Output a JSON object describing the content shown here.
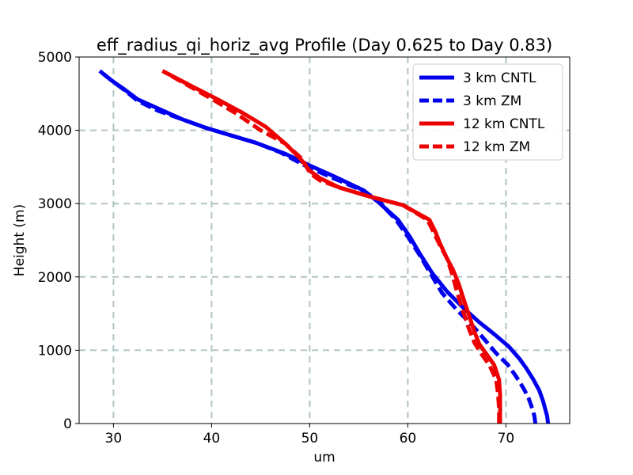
{
  "chart_data": {
    "type": "line",
    "title": "eff_radius_qi_horiz_avg Profile (Day 0.625 to Day 0.83)",
    "xlabel": "um",
    "ylabel": "Height (m)",
    "xlim": [
      26.5,
      76.5
    ],
    "ylim": [
      0,
      5000
    ],
    "xticks": [
      30,
      40,
      50,
      60,
      70
    ],
    "yticks": [
      0,
      1000,
      2000,
      3000,
      4000,
      5000
    ],
    "grid": true,
    "legend_position": "top-right",
    "series": [
      {
        "name": "3 km CNTL",
        "color": "#0000ee",
        "style": "solid",
        "points": [
          [
            74.3,
            0
          ],
          [
            74.2,
            100
          ],
          [
            74.0,
            200
          ],
          [
            73.8,
            300
          ],
          [
            73.4,
            450
          ],
          [
            72.8,
            600
          ],
          [
            72.1,
            750
          ],
          [
            71.4,
            880
          ],
          [
            70.3,
            1050
          ],
          [
            68.8,
            1220
          ],
          [
            67.3,
            1380
          ],
          [
            65.8,
            1560
          ],
          [
            64.0,
            1800
          ],
          [
            62.5,
            2050
          ],
          [
            61.3,
            2300
          ],
          [
            60.2,
            2550
          ],
          [
            59.0,
            2780
          ],
          [
            58.0,
            2900
          ],
          [
            57.0,
            3020
          ],
          [
            55.5,
            3180
          ],
          [
            52.5,
            3370
          ],
          [
            50.0,
            3520
          ],
          [
            47.5,
            3680
          ],
          [
            44.5,
            3830
          ],
          [
            42.0,
            3930
          ],
          [
            39.5,
            4030
          ],
          [
            37.0,
            4150
          ],
          [
            34.5,
            4300
          ],
          [
            32.5,
            4420
          ],
          [
            31.2,
            4550
          ],
          [
            29.8,
            4680
          ],
          [
            28.6,
            4810
          ]
        ]
      },
      {
        "name": "3 km ZM",
        "color": "#0000ee",
        "style": "dashed",
        "points": [
          [
            73.0,
            0
          ],
          [
            72.9,
            100
          ],
          [
            72.7,
            200
          ],
          [
            72.3,
            350
          ],
          [
            71.8,
            480
          ],
          [
            71.0,
            650
          ],
          [
            70.2,
            800
          ],
          [
            69.0,
            960
          ],
          [
            67.8,
            1150
          ],
          [
            66.5,
            1350
          ],
          [
            65.0,
            1550
          ],
          [
            63.5,
            1780
          ],
          [
            62.3,
            2050
          ],
          [
            61.2,
            2300
          ],
          [
            60.0,
            2550
          ],
          [
            58.8,
            2780
          ],
          [
            57.8,
            2920
          ],
          [
            57.0,
            3050
          ],
          [
            55.0,
            3200
          ],
          [
            52.0,
            3370
          ],
          [
            49.5,
            3520
          ],
          [
            47.0,
            3700
          ],
          [
            44.5,
            3830
          ],
          [
            42.0,
            3930
          ],
          [
            39.5,
            4030
          ],
          [
            37.0,
            4150
          ],
          [
            34.5,
            4270
          ],
          [
            32.5,
            4400
          ],
          [
            31.2,
            4540
          ],
          [
            29.8,
            4680
          ],
          [
            28.6,
            4810
          ]
        ]
      },
      {
        "name": "12 km CNTL",
        "color": "#ee0000",
        "style": "solid",
        "points": [
          [
            69.4,
            0
          ],
          [
            69.4,
            200
          ],
          [
            69.4,
            400
          ],
          [
            69.3,
            600
          ],
          [
            68.8,
            800
          ],
          [
            68.0,
            950
          ],
          [
            67.3,
            1080
          ],
          [
            66.8,
            1250
          ],
          [
            66.3,
            1450
          ],
          [
            65.8,
            1650
          ],
          [
            65.2,
            1900
          ],
          [
            64.6,
            2100
          ],
          [
            64.0,
            2250
          ],
          [
            63.3,
            2450
          ],
          [
            62.8,
            2620
          ],
          [
            62.2,
            2780
          ],
          [
            59.5,
            2980
          ],
          [
            56.0,
            3100
          ],
          [
            53.0,
            3220
          ],
          [
            51.0,
            3350
          ],
          [
            50.0,
            3450
          ],
          [
            49.0,
            3620
          ],
          [
            47.5,
            3820
          ],
          [
            45.5,
            4050
          ],
          [
            43.0,
            4250
          ],
          [
            40.5,
            4430
          ],
          [
            38.0,
            4600
          ],
          [
            35.0,
            4810
          ]
        ]
      },
      {
        "name": "12 km ZM",
        "color": "#ee0000",
        "style": "dashed",
        "points": [
          [
            69.3,
            0
          ],
          [
            69.3,
            200
          ],
          [
            69.2,
            400
          ],
          [
            69.0,
            600
          ],
          [
            68.3,
            800
          ],
          [
            67.5,
            950
          ],
          [
            66.8,
            1100
          ],
          [
            66.2,
            1300
          ],
          [
            65.6,
            1550
          ],
          [
            65.0,
            1800
          ],
          [
            64.5,
            2050
          ],
          [
            64.0,
            2250
          ],
          [
            63.2,
            2450
          ],
          [
            62.6,
            2620
          ],
          [
            62.0,
            2780
          ],
          [
            59.5,
            2980
          ],
          [
            56.0,
            3100
          ],
          [
            53.0,
            3220
          ],
          [
            51.0,
            3320
          ],
          [
            50.0,
            3420
          ],
          [
            49.3,
            3600
          ],
          [
            47.5,
            3820
          ],
          [
            45.0,
            4000
          ],
          [
            42.5,
            4230
          ],
          [
            40.0,
            4430
          ],
          [
            37.5,
            4620
          ],
          [
            35.0,
            4810
          ]
        ]
      }
    ]
  }
}
